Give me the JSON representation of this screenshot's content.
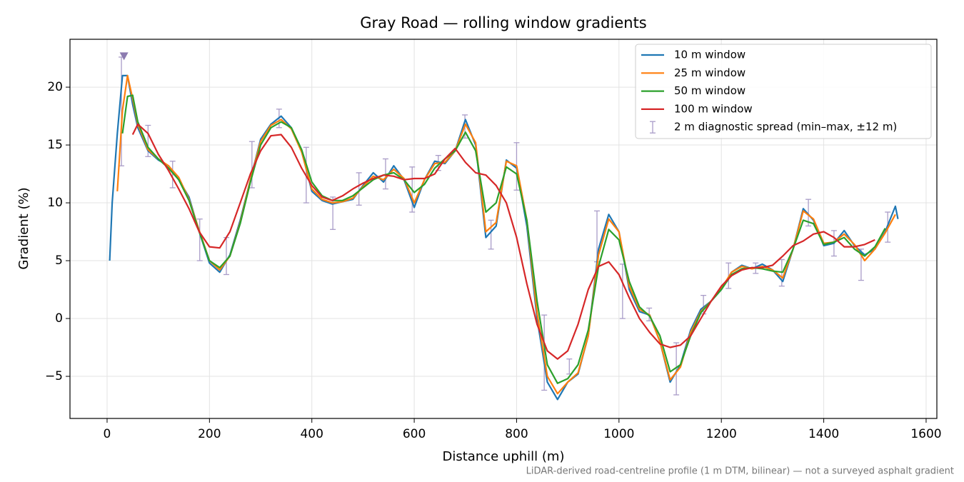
{
  "chart_data": {
    "type": "line",
    "title": "Gray Road — rolling window gradients",
    "xlabel": "Distance uphill (m)",
    "ylabel": "Gradient (%)",
    "footnote": "LiDAR-derived road-centreline profile (1 m DTM, bilinear) — not a surveyed asphalt gradient",
    "xlim": [
      -72.5,
      1621
    ],
    "ylim": [
      -8.64,
      24.14
    ],
    "xticks": [
      0,
      200,
      400,
      600,
      800,
      1000,
      1200,
      1400,
      1600
    ],
    "yticks": [
      {
        "value": -5,
        "label": "−5"
      },
      0,
      5,
      10,
      15,
      20
    ],
    "grid": true,
    "legend": "upper right",
    "x": [
      5,
      10,
      20,
      30,
      40,
      50,
      60,
      80,
      100,
      120,
      140,
      160,
      180,
      200,
      220,
      240,
      260,
      280,
      300,
      320,
      340,
      360,
      380,
      400,
      420,
      440,
      460,
      480,
      500,
      520,
      540,
      560,
      580,
      600,
      620,
      640,
      660,
      680,
      700,
      720,
      740,
      760,
      780,
      800,
      820,
      840,
      860,
      880,
      900,
      920,
      940,
      960,
      980,
      1000,
      1020,
      1040,
      1060,
      1080,
      1100,
      1120,
      1140,
      1160,
      1180,
      1200,
      1220,
      1240,
      1260,
      1280,
      1300,
      1320,
      1340,
      1360,
      1380,
      1400,
      1420,
      1440,
      1460,
      1480,
      1500,
      1520,
      1540,
      1545
    ],
    "series": [
      {
        "name": "10 m window",
        "color": "#1f77b4",
        "values": [
          5,
          10,
          16,
          21,
          21,
          18.5,
          16.5,
          14.5,
          13.7,
          13.2,
          12,
          10.5,
          7.5,
          4.8,
          4.0,
          5.5,
          8.5,
          12,
          15.5,
          16.8,
          17.5,
          16.5,
          14.5,
          11,
          10.2,
          9.9,
          10.1,
          10.3,
          11.5,
          12.6,
          11.8,
          13.2,
          12,
          9.6,
          12,
          13.6,
          13.4,
          14.5,
          17.2,
          15,
          7,
          8,
          13.7,
          13,
          8,
          0,
          -5.5,
          -7.0,
          -5.5,
          -4.8,
          -1.5,
          6,
          9,
          7.5,
          2.5,
          0.6,
          0.3,
          -2,
          -5.5,
          -4,
          -1,
          0.8,
          1.5,
          2.5,
          4,
          4.6,
          4.3,
          4.7,
          4.2,
          3.2,
          6,
          9.5,
          8.5,
          6.3,
          6.5,
          7.6,
          6.3,
          5.5,
          6,
          7.5,
          9.7,
          8.6
        ]
      },
      {
        "name": "25 m window",
        "color": "#ff7f0e",
        "values": [
          null,
          null,
          11,
          18,
          21,
          19,
          16.8,
          14.6,
          13.8,
          13.2,
          12.2,
          10.3,
          7.6,
          5.0,
          4.2,
          5.4,
          8.3,
          12,
          15.3,
          16.7,
          17.2,
          16.4,
          14.4,
          11.2,
          10.3,
          10.0,
          10.1,
          10.4,
          11.4,
          12.3,
          12.0,
          12.9,
          12.1,
          10.0,
          12.0,
          13.4,
          13.5,
          14.5,
          16.8,
          15.2,
          7.5,
          8.3,
          13.6,
          13.2,
          8.5,
          0.5,
          -5,
          -6.5,
          -5.5,
          -4.7,
          -1.5,
          5.5,
          8.6,
          7.5,
          2.8,
          0.8,
          0.3,
          -2,
          -5.3,
          -4.2,
          -1.2,
          0.6,
          1.5,
          2.6,
          4.0,
          4.5,
          4.3,
          4.5,
          4.2,
          3.5,
          6,
          9.3,
          8.6,
          6.5,
          6.6,
          7.3,
          6.4,
          5.0,
          6,
          7.4,
          9,
          null
        ]
      },
      {
        "name": "50 m window",
        "color": "#2ca02c",
        "values": [
          null,
          null,
          null,
          16,
          19.2,
          19.3,
          17,
          14.8,
          13.8,
          13,
          12,
          10.2,
          7.5,
          5.0,
          4.4,
          5.4,
          8.2,
          11.8,
          15,
          16.5,
          17.0,
          16.5,
          14.6,
          11.8,
          10.6,
          10.2,
          10.2,
          10.6,
          11.3,
          12.0,
          12.4,
          12.6,
          12.0,
          10.9,
          11.6,
          13.0,
          13.8,
          14.5,
          16.1,
          14.5,
          9.2,
          10,
          13.1,
          12.5,
          8.5,
          1.5,
          -4,
          -5.6,
          -5.2,
          -4.0,
          -1,
          4.5,
          7.7,
          6.8,
          3.2,
          1.0,
          0.2,
          -1.5,
          -4.6,
          -4,
          -1.5,
          0.5,
          1.5,
          2.5,
          3.8,
          4.3,
          4.4,
          4.3,
          4.1,
          4.0,
          6,
          8.5,
          8.2,
          6.4,
          6.6,
          7.0,
          6,
          5.4,
          6.2,
          7.8,
          null,
          null
        ]
      },
      {
        "name": "100 m window",
        "color": "#d62728",
        "values": [
          null,
          null,
          null,
          null,
          null,
          15.9,
          16.8,
          16.0,
          14.2,
          12.8,
          11.2,
          9.5,
          7.5,
          6.2,
          6.1,
          7.5,
          10,
          12.5,
          14.5,
          15.8,
          15.9,
          14.8,
          13,
          11.5,
          10.5,
          10.2,
          10.6,
          11.2,
          11.7,
          12.1,
          12.4,
          12.3,
          12.0,
          12.1,
          12.1,
          12.5,
          13.8,
          14.7,
          13.5,
          12.6,
          12.4,
          11.5,
          10,
          7,
          3,
          -0.5,
          -2.8,
          -3.5,
          -2.8,
          -0.5,
          2.5,
          4.5,
          4.9,
          3.8,
          1.8,
          0,
          -1.2,
          -2.2,
          -2.5,
          -2.3,
          -1.5,
          0,
          1.5,
          2.8,
          3.7,
          4.2,
          4.4,
          4.4,
          4.6,
          5.4,
          6.3,
          6.7,
          7.3,
          7.5,
          7.0,
          6.2,
          6.2,
          6.4,
          6.8,
          null,
          null,
          null
        ]
      }
    ],
    "errorbars": {
      "name": "2 m diagnostic spread (min–max, ±12 m)",
      "color": "#a99cc8",
      "x": [
        28,
        80,
        128,
        181,
        233,
        283,
        336,
        389,
        441,
        492,
        544,
        596,
        647,
        699,
        750,
        800,
        854,
        903,
        957,
        1007,
        1059,
        1112,
        1165,
        1214,
        1267,
        1318,
        1370,
        1420,
        1473,
        1525
      ],
      "low": [
        13.2,
        14,
        11.3,
        5,
        3.8,
        11.3,
        16.5,
        10,
        7.7,
        9.8,
        11.2,
        9.2,
        12.8,
        15.6,
        6,
        11.1,
        -6.2,
        -4.8,
        4.9,
        0,
        -0.2,
        -6.6,
        0.4,
        2.6,
        3.9,
        2.8,
        8.0,
        5.4,
        3.3,
        6.6
      ],
      "high": [
        22.6,
        16.7,
        13.6,
        8.6,
        7.0,
        15.3,
        18.1,
        14.8,
        10.5,
        12.6,
        13.8,
        13.1,
        14.1,
        17.6,
        8.5,
        15.2,
        0.3,
        -3.5,
        9.3,
        4.7,
        0.9,
        -2.1,
        2.0,
        4.8,
        4.8,
        5.1,
        10.3,
        7.6,
        6.0,
        9.2
      ]
    },
    "peak_marker": {
      "x": 33,
      "y": 22.7,
      "color": "#8c7bb0"
    }
  }
}
